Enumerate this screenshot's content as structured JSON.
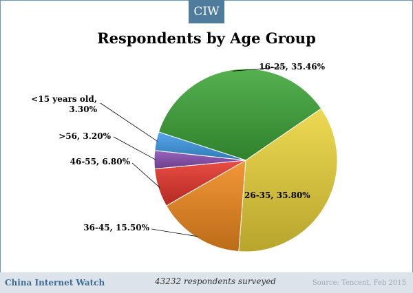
{
  "badge": "CIW",
  "footer": {
    "brand": "China Internet Watch",
    "note": "43232 respondents surveyed",
    "source": "Source: Tencent, Feb 2015"
  },
  "colors": {
    "frame": "#6a96b5",
    "badge": "#4f7b9d",
    "footer_bg": "#dde3ea",
    "brand": "#3e6d94"
  },
  "chart_data": {
    "type": "pie",
    "title": "Respondents by Age Group",
    "slices": [
      {
        "label": "16-25, 35.46%",
        "category": "16-25",
        "value": 35.46,
        "color": "#3ea638"
      },
      {
        "label": "26-35, 35.80%",
        "category": "26-35",
        "value": 35.8,
        "color": "#ead43a"
      },
      {
        "label": "36-45, 15.50%",
        "category": "36-45",
        "value": 15.5,
        "color": "#f0891e"
      },
      {
        "label": "46-55, 6.80%",
        "category": "46-55",
        "value": 6.8,
        "color": "#e5352a"
      },
      {
        "label": ">56, 3.20%",
        "category": ">56",
        "value": 3.2,
        "color": "#8a4fb3"
      },
      {
        "label": "<15 years old, 3.30%",
        "label_lines": [
          "<15 years old,",
          "3.30%"
        ],
        "category": "<15 years old",
        "value": 3.3,
        "color": "#3f9be8"
      }
    ]
  }
}
